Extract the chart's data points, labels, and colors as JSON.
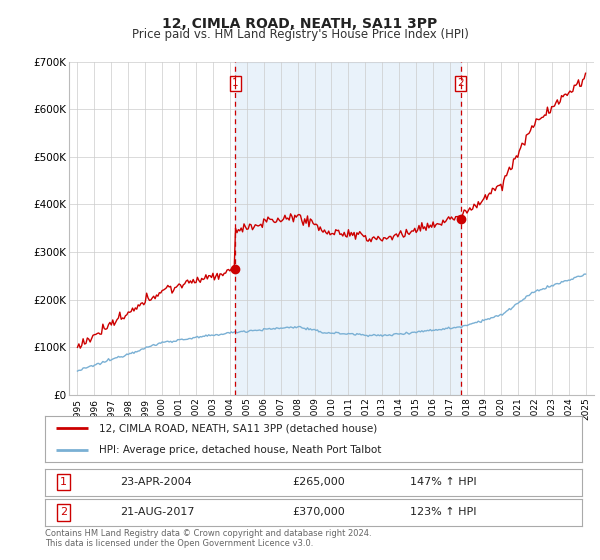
{
  "title": "12, CIMLA ROAD, NEATH, SA11 3PP",
  "subtitle": "Price paid vs. HM Land Registry's House Price Index (HPI)",
  "legend_line1": "12, CIMLA ROAD, NEATH, SA11 3PP (detached house)",
  "legend_line2": "HPI: Average price, detached house, Neath Port Talbot",
  "point1_label": "1",
  "point1_date": "23-APR-2004",
  "point1_price": "£265,000",
  "point1_hpi": "147% ↑ HPI",
  "point2_label": "2",
  "point2_date": "21-AUG-2017",
  "point2_price": "£370,000",
  "point2_hpi": "123% ↑ HPI",
  "footer": "Contains HM Land Registry data © Crown copyright and database right 2024.\nThis data is licensed under the Open Government Licence v3.0.",
  "xlim": [
    1994.5,
    2025.5
  ],
  "ylim": [
    0,
    700000
  ],
  "sale1_x": 2004.31,
  "sale1_y": 265000,
  "sale2_x": 2017.64,
  "sale2_y": 370000,
  "red_color": "#cc0000",
  "blue_color": "#7ab0d4",
  "shade_color": "#ddeeff",
  "bg_color": "#ffffff",
  "grid_color": "#cccccc"
}
